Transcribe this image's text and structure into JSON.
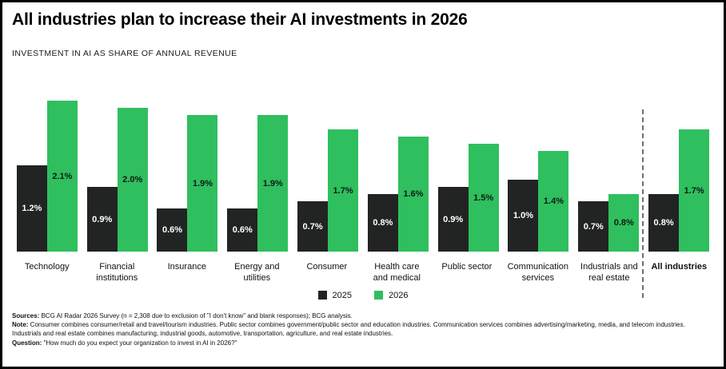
{
  "chart_data": {
    "type": "bar",
    "title": "All industries plan to increase their AI investments in 2026",
    "subtitle": "INVESTMENT IN AI AS SHARE OF ANNUAL REVENUE",
    "categories": [
      "Technology",
      "Financial institutions",
      "Insurance",
      "Energy and utilities",
      "Consumer",
      "Health care and medical",
      "Public sector",
      "Communication services",
      "Industrials and real estate",
      "All industries"
    ],
    "series": [
      {
        "name": "2025",
        "color": "#212422",
        "values": [
          1.2,
          0.9,
          0.6,
          0.6,
          0.7,
          0.8,
          0.9,
          1.0,
          0.7,
          0.8
        ]
      },
      {
        "name": "2026",
        "color": "#2fbf5f",
        "values": [
          2.1,
          2.0,
          1.9,
          1.9,
          1.7,
          1.6,
          1.5,
          1.4,
          0.8,
          1.7
        ]
      }
    ],
    "value_suffix": "%",
    "ylim": [
      0,
      2.4
    ],
    "grid": false,
    "legend_position": "bottom",
    "separator_before_category": "All industries",
    "emphasis_category_index": 9
  },
  "footer": {
    "sources_label": "Sources:",
    "sources_text": " BCG AI Radar 2026 Survey (n = 2,308 due to exclusion of \"I don't know\" and blank responses); BCG analysis.",
    "note_label": "Note:",
    "note_text": " Consumer combines consumer/retail and travel/tourism industries. Public sector combines government/public sector and education industries. Communication services combines advertising/marketing, media, and telecom industries. Industrials and real estate combines manufacturing, industrial goods, automotive, transportation, agriculture, and real estate industries.",
    "question_label": "Question:",
    "question_text": " \"How much do you expect your organization to invest in AI in 2026?\""
  }
}
